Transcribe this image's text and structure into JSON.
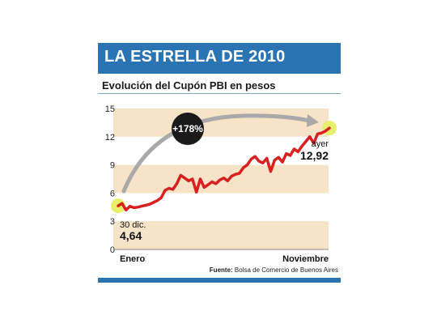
{
  "header": {
    "title": "LA ESTRELLA DE 2010"
  },
  "chart_data": {
    "type": "line",
    "title": "Evolución del Cupón PBI en pesos",
    "xlabel": "",
    "ylabel": "",
    "ylim": [
      0,
      15
    ],
    "yticks": [
      "15",
      "12",
      "9",
      "6",
      "3",
      "0"
    ],
    "x_axis_labels": {
      "start": "Enero",
      "end": "Noviembre"
    },
    "series": [
      {
        "values": [
          4.64,
          4.9,
          4.2,
          4.6,
          4.45,
          4.5,
          4.6,
          4.7,
          4.8,
          5.0,
          5.2,
          5.5,
          6.3,
          6.5,
          6.4,
          7.0,
          7.9,
          7.6,
          7.3,
          7.5,
          6.1,
          7.5,
          6.6,
          6.9,
          7.2,
          7.0,
          7.4,
          7.6,
          7.3,
          7.8,
          8.0,
          8.1,
          8.7,
          9.0,
          9.6,
          9.9,
          9.4,
          9.2,
          9.7,
          8.3,
          9.5,
          9.8,
          9.3,
          10.2,
          10.0,
          10.7,
          10.4,
          11.0,
          11.5,
          12.0,
          11.3,
          12.3,
          12.4,
          12.6,
          12.92
        ]
      }
    ],
    "annotations": {
      "start_label": "30 dic.",
      "start_value": "4,64",
      "end_label": "ayer",
      "end_value": "12,92",
      "change_badge": "+178%"
    },
    "colors": {
      "line": "#d92020",
      "band": "#f7e3c8",
      "highlight": "#e8ef6a",
      "arrow": "#a9a9a9",
      "badge": "#1a1a1a"
    }
  },
  "footer": {
    "source_label": "Fuente:",
    "source_text": "Bolsa de Comercio de Buenos Aires"
  }
}
